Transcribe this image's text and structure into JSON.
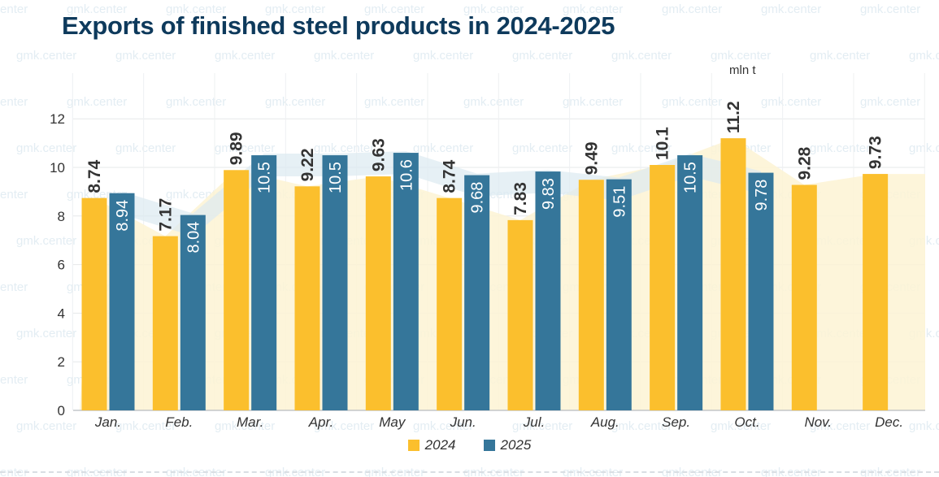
{
  "title": "Exports of finished steel products in 2024-2025",
  "unit_label": "mln t",
  "watermark": "gmk.center",
  "colors": {
    "y2024": "#fbbf2d",
    "y2025": "#35769a",
    "area": "#fdf3d4",
    "title": "#0e3a5c"
  },
  "chart_data": {
    "type": "bar",
    "title": "Exports of finished steel products in 2024-2025",
    "ylabel": "mln t",
    "ylim": [
      0,
      12
    ],
    "yticks": [
      0,
      2,
      4,
      6,
      8,
      10,
      12
    ],
    "categories": [
      "Jan.",
      "Feb.",
      "Mar.",
      "Apr.",
      "May",
      "Jun.",
      "Jul.",
      "Aug.",
      "Sep.",
      "Oct.",
      "Nov.",
      "Dec."
    ],
    "series": [
      {
        "name": "2024",
        "values": [
          8.74,
          7.17,
          9.89,
          9.22,
          9.63,
          8.74,
          7.83,
          9.49,
          10.1,
          11.2,
          9.28,
          9.73
        ],
        "labels": [
          "8.74",
          "7.17",
          "9.89",
          "9.22",
          "9.63",
          "8.74",
          "7.83",
          "9.49",
          "10.1",
          "11.2",
          "9.28",
          "9.73"
        ]
      },
      {
        "name": "2025",
        "values": [
          8.94,
          8.04,
          10.5,
          10.5,
          10.6,
          9.68,
          9.83,
          9.51,
          10.5,
          9.78,
          null,
          null
        ],
        "labels": [
          "8.94",
          "8.04",
          "10.5",
          "10.5",
          "10.6",
          "9.68",
          "9.83",
          "9.51",
          "10.5",
          "9.78",
          null,
          null
        ]
      }
    ],
    "legend": [
      "2024",
      "2025"
    ],
    "grid": true
  }
}
